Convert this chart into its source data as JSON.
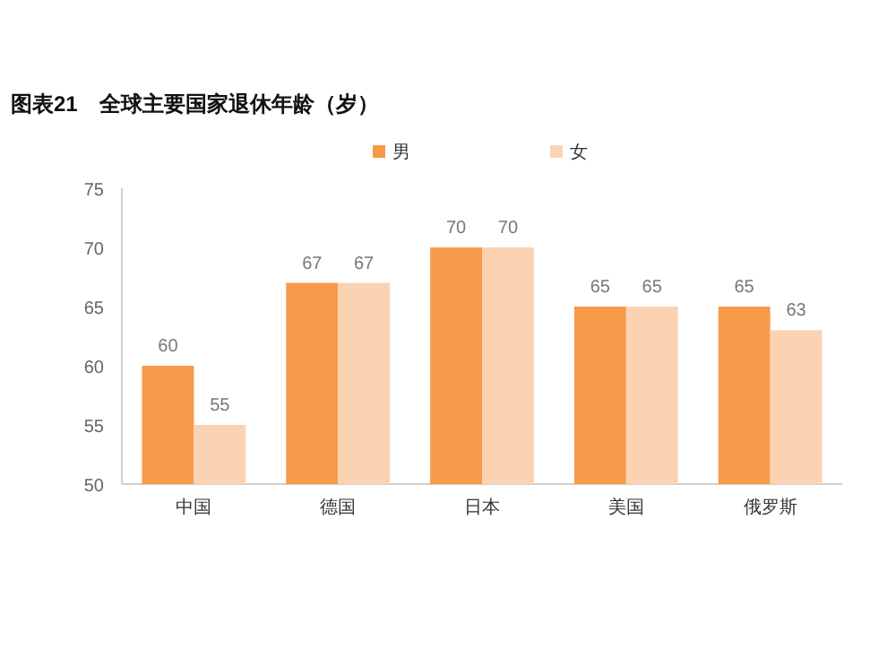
{
  "chart_data": {
    "type": "bar",
    "title": "图表21　全球主要国家退休年龄（岁）",
    "categories": [
      "中国",
      "德国",
      "日本",
      "美国",
      "俄罗斯"
    ],
    "series": [
      {
        "name": "男",
        "color": "#f79a4a",
        "values": [
          60,
          67,
          70,
          65,
          65
        ]
      },
      {
        "name": "女",
        "color": "#fbd3b3",
        "values": [
          55,
          67,
          70,
          65,
          63
        ]
      }
    ],
    "ylim": [
      50,
      75
    ],
    "yticks": [
      50,
      55,
      60,
      65,
      70,
      75
    ],
    "data_labels": true,
    "legend": "top",
    "grid": false
  }
}
